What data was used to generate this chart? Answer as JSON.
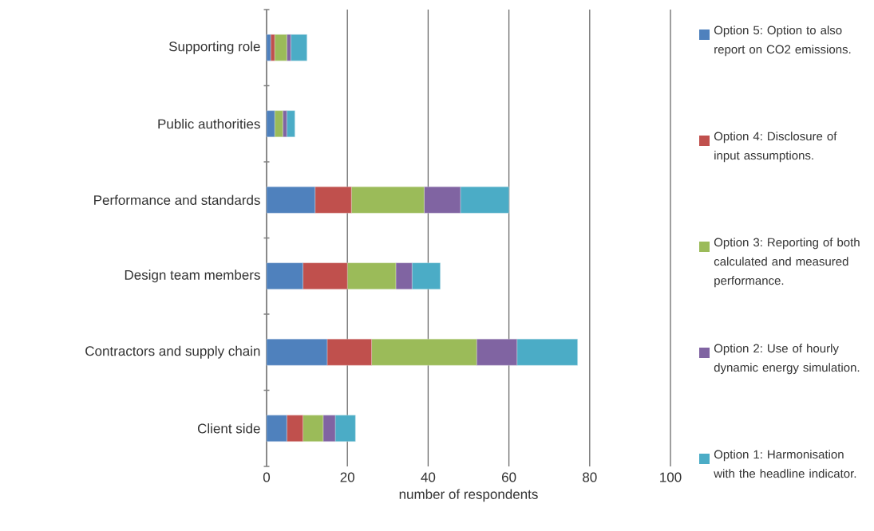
{
  "chart_data": {
    "type": "bar",
    "orientation": "horizontal",
    "stacked": true,
    "xlabel": "number of respondents",
    "categories": [
      "Supporting role",
      "Public authorities",
      "Performance and standards",
      "Design team members",
      "Contractors and supply chain",
      "Client side"
    ],
    "series": [
      {
        "name": "Option 5: Option to also report on CO2 emissions.",
        "color": "#4f81bd",
        "values": [
          1,
          2,
          12,
          9,
          15,
          5
        ]
      },
      {
        "name": "Option 4: Disclosure of input assumptions.",
        "color": "#c0504d",
        "values": [
          1,
          0,
          9,
          11,
          11,
          4
        ]
      },
      {
        "name": "Option 3: Reporting of both calculated and measured performance.",
        "color": "#9bbb59",
        "values": [
          3,
          2,
          18,
          12,
          26,
          5
        ]
      },
      {
        "name": "Option 2: Use of hourly dynamic energy simulation.",
        "color": "#8064a2",
        "values": [
          1,
          1,
          9,
          4,
          10,
          3
        ]
      },
      {
        "name": "Option 1: Harmonisation with the headline indicator.",
        "color": "#4bacc6",
        "values": [
          4,
          2,
          12,
          7,
          15,
          5
        ]
      }
    ],
    "xlim": [
      0,
      100
    ],
    "xticks": [
      0,
      20,
      40,
      60,
      80,
      100
    ],
    "grid": "x",
    "legend": "right"
  }
}
